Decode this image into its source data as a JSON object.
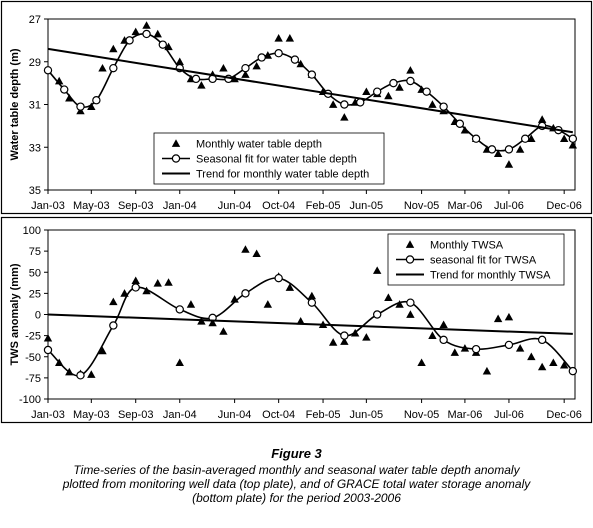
{
  "chart_data": [
    {
      "type": "line",
      "ylabel": "Water table depth (m)",
      "xlabel": "",
      "y_inverted": true,
      "ylim": [
        27,
        35
      ],
      "yticks": [
        27,
        29,
        31,
        33,
        35
      ],
      "xlim": [
        "2003-01-01",
        "2006-12-31"
      ],
      "x_ticks": [
        {
          "label": "Jan-03",
          "date": "2003-01-01"
        },
        {
          "label": "May-03",
          "date": "2003-05-01"
        },
        {
          "label": "Sep-03",
          "date": "2003-09-01"
        },
        {
          "label": "Jan-04",
          "date": "2004-01-01"
        },
        {
          "label": "Jun-04",
          "date": "2004-06-01"
        },
        {
          "label": "Oct-04",
          "date": "2004-10-01"
        },
        {
          "label": "Feb-05",
          "date": "2005-02-01"
        },
        {
          "label": "Jun-05",
          "date": "2005-06-01"
        },
        {
          "label": "Nov-05",
          "date": "2005-11-01"
        },
        {
          "label": "Mar-06",
          "date": "2006-03-01"
        },
        {
          "label": "Jul-06",
          "date": "2006-07-01"
        },
        {
          "label": "Dec-06",
          "date": "2006-12-01"
        }
      ],
      "grid": false,
      "legend_position": "bottom-center",
      "series": [
        {
          "name": "Monthly water table depth",
          "marker": "triangle",
          "line": false,
          "points": [
            {
              "x": "2003-02-01",
              "y": 29.9
            },
            {
              "x": "2003-03-01",
              "y": 30.7
            },
            {
              "x": "2003-04-01",
              "y": 31.3
            },
            {
              "x": "2003-05-01",
              "y": 31.1
            },
            {
              "x": "2003-06-01",
              "y": 29.3
            },
            {
              "x": "2003-07-01",
              "y": 28.4
            },
            {
              "x": "2003-08-01",
              "y": 28.0
            },
            {
              "x": "2003-09-01",
              "y": 27.6
            },
            {
              "x": "2003-10-01",
              "y": 27.3
            },
            {
              "x": "2003-11-01",
              "y": 27.7
            },
            {
              "x": "2003-12-01",
              "y": 28.3
            },
            {
              "x": "2004-01-01",
              "y": 29.0
            },
            {
              "x": "2004-02-01",
              "y": 29.8
            },
            {
              "x": "2004-03-01",
              "y": 30.1
            },
            {
              "x": "2004-04-01",
              "y": 29.6
            },
            {
              "x": "2004-05-01",
              "y": 29.3
            },
            {
              "x": "2004-06-01",
              "y": 29.8
            },
            {
              "x": "2004-07-01",
              "y": 29.6
            },
            {
              "x": "2004-08-01",
              "y": 29.2
            },
            {
              "x": "2004-09-01",
              "y": 28.7
            },
            {
              "x": "2004-10-01",
              "y": 27.9
            },
            {
              "x": "2004-11-01",
              "y": 27.9
            },
            {
              "x": "2004-12-01",
              "y": 29.1
            },
            {
              "x": "2005-01-01",
              "y": 29.6
            },
            {
              "x": "2005-02-01",
              "y": 30.4
            },
            {
              "x": "2005-03-01",
              "y": 31.0
            },
            {
              "x": "2005-04-01",
              "y": 31.6
            },
            {
              "x": "2005-05-01",
              "y": 30.9
            },
            {
              "x": "2005-06-01",
              "y": 30.4
            },
            {
              "x": "2005-07-01",
              "y": 30.5
            },
            {
              "x": "2005-08-01",
              "y": 30.6
            },
            {
              "x": "2005-09-01",
              "y": 30.2
            },
            {
              "x": "2005-10-01",
              "y": 29.4
            },
            {
              "x": "2005-11-01",
              "y": 30.3
            },
            {
              "x": "2005-12-01",
              "y": 31.0
            },
            {
              "x": "2006-01-01",
              "y": 31.3
            },
            {
              "x": "2006-02-01",
              "y": 31.8
            },
            {
              "x": "2006-03-01",
              "y": 32.2
            },
            {
              "x": "2006-04-01",
              "y": 32.6
            },
            {
              "x": "2006-05-01",
              "y": 33.1
            },
            {
              "x": "2006-06-01",
              "y": 33.3
            },
            {
              "x": "2006-07-01",
              "y": 33.8
            },
            {
              "x": "2006-08-01",
              "y": 33.1
            },
            {
              "x": "2006-09-01",
              "y": 32.6
            },
            {
              "x": "2006-10-01",
              "y": 31.7
            },
            {
              "x": "2006-11-01",
              "y": 32.1
            },
            {
              "x": "2006-12-01",
              "y": 32.6
            },
            {
              "x": "2006-12-25",
              "y": 32.9
            }
          ]
        },
        {
          "name": "Seasonal fit for water table depth",
          "marker": "open-circle",
          "line": true,
          "smooth": true,
          "points": [
            {
              "x": "2003-01-01",
              "y": 29.4
            },
            {
              "x": "2003-02-15",
              "y": 30.3
            },
            {
              "x": "2003-04-01",
              "y": 31.1
            },
            {
              "x": "2003-05-15",
              "y": 30.8
            },
            {
              "x": "2003-07-01",
              "y": 29.3
            },
            {
              "x": "2003-08-15",
              "y": 28.0
            },
            {
              "x": "2003-10-01",
              "y": 27.7
            },
            {
              "x": "2003-11-15",
              "y": 28.2
            },
            {
              "x": "2004-01-01",
              "y": 29.3
            },
            {
              "x": "2004-02-15",
              "y": 29.8
            },
            {
              "x": "2004-04-01",
              "y": 29.8
            },
            {
              "x": "2004-05-15",
              "y": 29.8
            },
            {
              "x": "2004-07-01",
              "y": 29.3
            },
            {
              "x": "2004-08-15",
              "y": 28.8
            },
            {
              "x": "2004-10-01",
              "y": 28.6
            },
            {
              "x": "2004-11-15",
              "y": 28.9
            },
            {
              "x": "2005-01-01",
              "y": 29.6
            },
            {
              "x": "2005-02-15",
              "y": 30.5
            },
            {
              "x": "2005-04-01",
              "y": 31.0
            },
            {
              "x": "2005-05-15",
              "y": 30.9
            },
            {
              "x": "2005-07-01",
              "y": 30.4
            },
            {
              "x": "2005-08-15",
              "y": 30.0
            },
            {
              "x": "2005-10-01",
              "y": 29.9
            },
            {
              "x": "2005-11-15",
              "y": 30.4
            },
            {
              "x": "2006-01-01",
              "y": 31.1
            },
            {
              "x": "2006-02-15",
              "y": 31.9
            },
            {
              "x": "2006-04-01",
              "y": 32.6
            },
            {
              "x": "2006-05-15",
              "y": 33.1
            },
            {
              "x": "2006-07-01",
              "y": 33.1
            },
            {
              "x": "2006-08-15",
              "y": 32.6
            },
            {
              "x": "2006-10-01",
              "y": 32.0
            },
            {
              "x": "2006-11-15",
              "y": 32.2
            },
            {
              "x": "2006-12-25",
              "y": 32.6
            }
          ]
        },
        {
          "name": "Trend for monthly water table depth",
          "marker": "none",
          "line": true,
          "points": [
            {
              "x": "2003-01-01",
              "y": 28.4
            },
            {
              "x": "2006-12-25",
              "y": 32.3
            }
          ]
        }
      ]
    },
    {
      "type": "line",
      "ylabel": "TWS anomaly (mm)",
      "xlabel": "",
      "ylim": [
        -100,
        100
      ],
      "yticks": [
        100,
        75,
        50,
        25,
        0,
        -25,
        -50,
        -75,
        -100
      ],
      "xlim": [
        "2003-01-01",
        "2006-12-31"
      ],
      "x_ticks": [
        {
          "label": "Jan-03",
          "date": "2003-01-01"
        },
        {
          "label": "May-03",
          "date": "2003-05-01"
        },
        {
          "label": "Sep-03",
          "date": "2003-09-01"
        },
        {
          "label": "Jan-04",
          "date": "2004-01-01"
        },
        {
          "label": "Jun-04",
          "date": "2004-06-01"
        },
        {
          "label": "Oct-04",
          "date": "2004-10-01"
        },
        {
          "label": "Feb-05",
          "date": "2005-02-01"
        },
        {
          "label": "Jun-05",
          "date": "2005-06-01"
        },
        {
          "label": "Nov-05",
          "date": "2005-11-01"
        },
        {
          "label": "Mar-06",
          "date": "2006-03-01"
        },
        {
          "label": "Jul-06",
          "date": "2006-07-01"
        },
        {
          "label": "Dec-06",
          "date": "2006-12-01"
        }
      ],
      "grid": false,
      "legend_position": "top-right",
      "series": [
        {
          "name": "Monthly TWSA",
          "marker": "triangle",
          "line": false,
          "points": [
            {
              "x": "2003-01-01",
              "y": -28
            },
            {
              "x": "2003-02-01",
              "y": -57
            },
            {
              "x": "2003-03-01",
              "y": -68
            },
            {
              "x": "2003-04-01",
              "y": -70
            },
            {
              "x": "2003-05-01",
              "y": -71
            },
            {
              "x": "2003-06-01",
              "y": -43
            },
            {
              "x": "2003-07-01",
              "y": 15
            },
            {
              "x": "2003-08-01",
              "y": 25
            },
            {
              "x": "2003-09-01",
              "y": 40
            },
            {
              "x": "2003-10-01",
              "y": 28
            },
            {
              "x": "2003-11-01",
              "y": 37
            },
            {
              "x": "2003-12-01",
              "y": 38
            },
            {
              "x": "2004-01-01",
              "y": -57
            },
            {
              "x": "2004-02-01",
              "y": 12
            },
            {
              "x": "2004-03-01",
              "y": -8
            },
            {
              "x": "2004-04-01",
              "y": -10
            },
            {
              "x": "2004-05-01",
              "y": -20
            },
            {
              "x": "2004-06-01",
              "y": 18
            },
            {
              "x": "2004-07-01",
              "y": 77
            },
            {
              "x": "2004-08-01",
              "y": 72
            },
            {
              "x": "2004-09-01",
              "y": 12
            },
            {
              "x": "2004-10-01",
              "y": 45
            },
            {
              "x": "2004-11-01",
              "y": 32
            },
            {
              "x": "2004-12-01",
              "y": -8
            },
            {
              "x": "2005-01-01",
              "y": 22
            },
            {
              "x": "2005-02-01",
              "y": -12
            },
            {
              "x": "2005-03-01",
              "y": -33
            },
            {
              "x": "2005-04-01",
              "y": -32
            },
            {
              "x": "2005-05-01",
              "y": -22
            },
            {
              "x": "2005-06-01",
              "y": -27
            },
            {
              "x": "2005-07-01",
              "y": 52
            },
            {
              "x": "2005-08-01",
              "y": 20
            },
            {
              "x": "2005-09-01",
              "y": 12
            },
            {
              "x": "2005-10-01",
              "y": 0
            },
            {
              "x": "2005-11-01",
              "y": -57
            },
            {
              "x": "2005-12-01",
              "y": -25
            },
            {
              "x": "2006-01-01",
              "y": -12
            },
            {
              "x": "2006-02-01",
              "y": -45
            },
            {
              "x": "2006-03-01",
              "y": -40
            },
            {
              "x": "2006-04-01",
              "y": -45
            },
            {
              "x": "2006-05-01",
              "y": -67
            },
            {
              "x": "2006-06-01",
              "y": -5
            },
            {
              "x": "2006-07-01",
              "y": -3
            },
            {
              "x": "2006-08-01",
              "y": -40
            },
            {
              "x": "2006-09-01",
              "y": -50
            },
            {
              "x": "2006-10-01",
              "y": -62
            },
            {
              "x": "2006-11-01",
              "y": -57
            },
            {
              "x": "2006-12-01",
              "y": -60
            }
          ]
        },
        {
          "name": "seasonal fit for TWSA",
          "marker": "open-circle",
          "line": true,
          "smooth": true,
          "points": [
            {
              "x": "2003-01-01",
              "y": -42
            },
            {
              "x": "2003-04-01",
              "y": -72
            },
            {
              "x": "2003-07-01",
              "y": -13
            },
            {
              "x": "2003-09-01",
              "y": 32
            },
            {
              "x": "2004-01-01",
              "y": 6
            },
            {
              "x": "2004-04-01",
              "y": -4
            },
            {
              "x": "2004-07-01",
              "y": 25
            },
            {
              "x": "2004-10-01",
              "y": 43
            },
            {
              "x": "2005-01-01",
              "y": 14
            },
            {
              "x": "2005-04-01",
              "y": -25
            },
            {
              "x": "2005-07-01",
              "y": 0
            },
            {
              "x": "2005-10-01",
              "y": 14
            },
            {
              "x": "2006-01-01",
              "y": -30
            },
            {
              "x": "2006-04-01",
              "y": -41
            },
            {
              "x": "2006-07-01",
              "y": -36
            },
            {
              "x": "2006-10-01",
              "y": -30
            },
            {
              "x": "2006-12-25",
              "y": -67
            }
          ]
        },
        {
          "name": "Trend for monthly TWSA",
          "marker": "none",
          "line": true,
          "points": [
            {
              "x": "2003-01-01",
              "y": 0
            },
            {
              "x": "2006-12-25",
              "y": -23
            }
          ]
        }
      ]
    }
  ],
  "caption": {
    "title": "Figure 3",
    "text": "Time-series of the basin-averaged monthly and seasonal water table depth anomaly plotted from monitoring well data (top plate), and of GRACE total water storage anomaly (bottom plate) for the period 2003-2006"
  }
}
